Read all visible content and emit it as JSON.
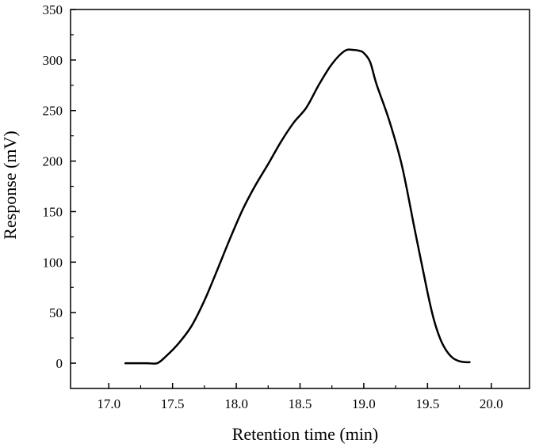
{
  "chart_data": {
    "type": "line",
    "title": "",
    "xlabel": "Retention time (min)",
    "ylabel": "Response (mV)",
    "xlim": [
      16.7,
      20.3
    ],
    "ylim": [
      -25,
      350
    ],
    "x_ticks": [
      17.0,
      17.5,
      18.0,
      18.5,
      19.0,
      19.5,
      20.0
    ],
    "x_tick_labels": [
      "17.0",
      "17.5",
      "18.0",
      "18.5",
      "19.0",
      "19.5",
      "20.0"
    ],
    "y_ticks": [
      0,
      50,
      100,
      150,
      200,
      250,
      300,
      350
    ],
    "y_tick_labels": [
      "0",
      "50",
      "100",
      "150",
      "200",
      "250",
      "300",
      "350"
    ],
    "grid": false,
    "legend": "none",
    "line_color": "#000000",
    "series": [
      {
        "x": [
          17.13,
          17.2,
          17.3,
          17.38,
          17.45,
          17.55,
          17.65,
          17.75,
          17.85,
          17.95,
          18.05,
          18.15,
          18.25,
          18.35,
          18.45,
          18.55,
          18.65,
          18.75,
          18.85,
          18.92,
          18.97,
          19.0,
          19.05,
          19.1,
          19.2,
          19.3,
          19.4,
          19.5,
          19.55,
          19.6,
          19.65,
          19.7,
          19.75,
          19.8,
          19.83
        ],
        "y": [
          0,
          0,
          0,
          0,
          7,
          20,
          37,
          62,
          92,
          123,
          152,
          176,
          197,
          219,
          238,
          253,
          276,
          296,
          309,
          310,
          309,
          307,
          298,
          276,
          240,
          195,
          132,
          70,
          43,
          24,
          12,
          5,
          2,
          1,
          1
        ]
      }
    ]
  }
}
